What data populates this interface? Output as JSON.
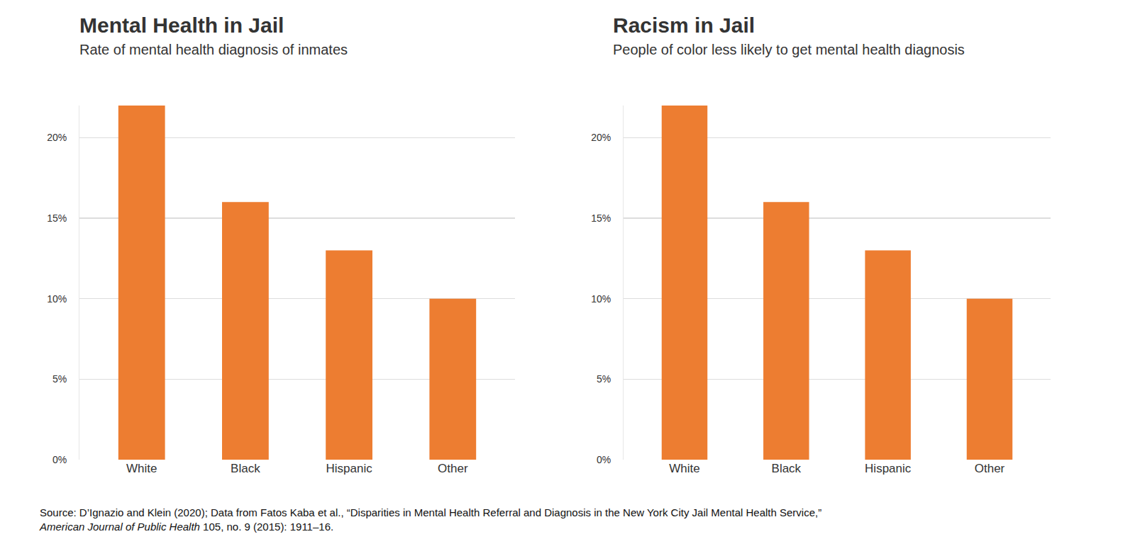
{
  "chart_data": [
    {
      "type": "bar",
      "title": "Mental Health in Jail",
      "subtitle": "Rate of mental health diagnosis of inmates",
      "categories": [
        "White",
        "Black",
        "Hispanic",
        "Other"
      ],
      "values": [
        22,
        16,
        13,
        10
      ],
      "color": "#ed7d31",
      "ylim": [
        0,
        22
      ],
      "yticks": [
        {
          "value": 0,
          "label": "0%"
        },
        {
          "value": 5,
          "label": "5%"
        },
        {
          "value": 10,
          "label": "10%"
        },
        {
          "value": 15,
          "label": "15%"
        },
        {
          "value": 20,
          "label": "20%"
        }
      ],
      "grid": true
    },
    {
      "type": "bar",
      "title": "Racism in Jail",
      "subtitle": "People of color less likely to get mental health diagnosis",
      "categories": [
        "White",
        "Black",
        "Hispanic",
        "Other"
      ],
      "values": [
        22,
        16,
        13,
        10
      ],
      "color": "#ed7d31",
      "ylim": [
        0,
        22
      ],
      "yticks": [
        {
          "value": 0,
          "label": "0%"
        },
        {
          "value": 5,
          "label": "5%"
        },
        {
          "value": 10,
          "label": "10%"
        },
        {
          "value": 15,
          "label": "15%"
        },
        {
          "value": 20,
          "label": "20%"
        }
      ],
      "grid": true
    }
  ],
  "source": {
    "text": "Source: D’Ignazio and Klein (2020); Data from Fatos Kaba et al., “Disparities in Mental Health Referral and Diagnosis in the New York City Jail Mental Health Service,”",
    "journal": "American Journal of Public Health",
    "citation": "105, no. 9 (2015): 1911–16."
  }
}
